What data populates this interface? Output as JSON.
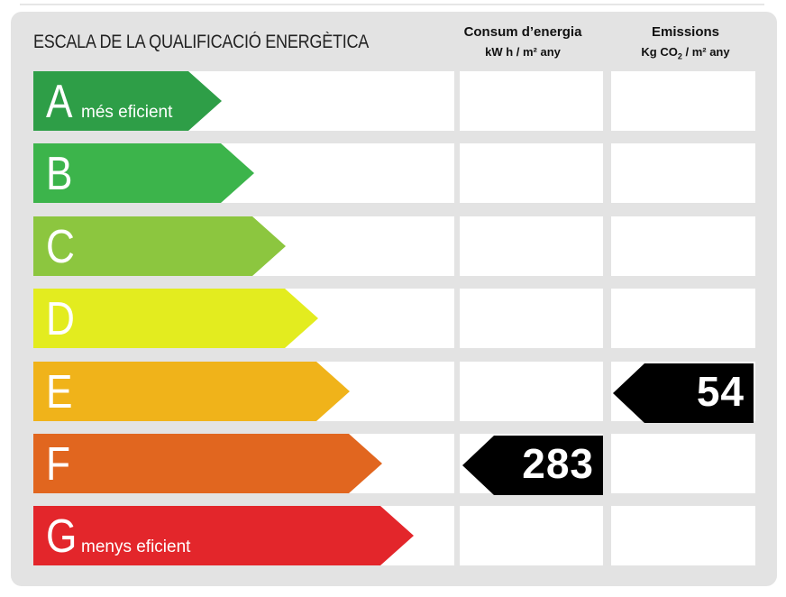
{
  "title": "ESCALA DE LA QUALIFICACIÓ ENERGÈTICA",
  "columns": {
    "consum": {
      "title": "Consum d’energia",
      "unit": "kW h / m² any"
    },
    "emissions": {
      "title": "Emissions",
      "unit_prefix": "Kg CO",
      "unit_sub": "2",
      "unit_suffix": " / m² any"
    }
  },
  "ratings": [
    {
      "letter": "A",
      "sublabel": "més eficient",
      "color": "#2e9e47"
    },
    {
      "letter": "B",
      "sublabel": "",
      "color": "#3cb44b"
    },
    {
      "letter": "C",
      "sublabel": "",
      "color": "#8cc63f"
    },
    {
      "letter": "D",
      "sublabel": "",
      "color": "#e3ec1f"
    },
    {
      "letter": "E",
      "sublabel": "",
      "color": "#f0b31a"
    },
    {
      "letter": "F",
      "sublabel": "",
      "color": "#e1661f"
    },
    {
      "letter": "G",
      "sublabel": "menys eficient",
      "color": "#e3262b"
    }
  ],
  "values": {
    "consum": {
      "rating": "F",
      "value": "283"
    },
    "emissions": {
      "rating": "E",
      "value": "54"
    }
  }
}
